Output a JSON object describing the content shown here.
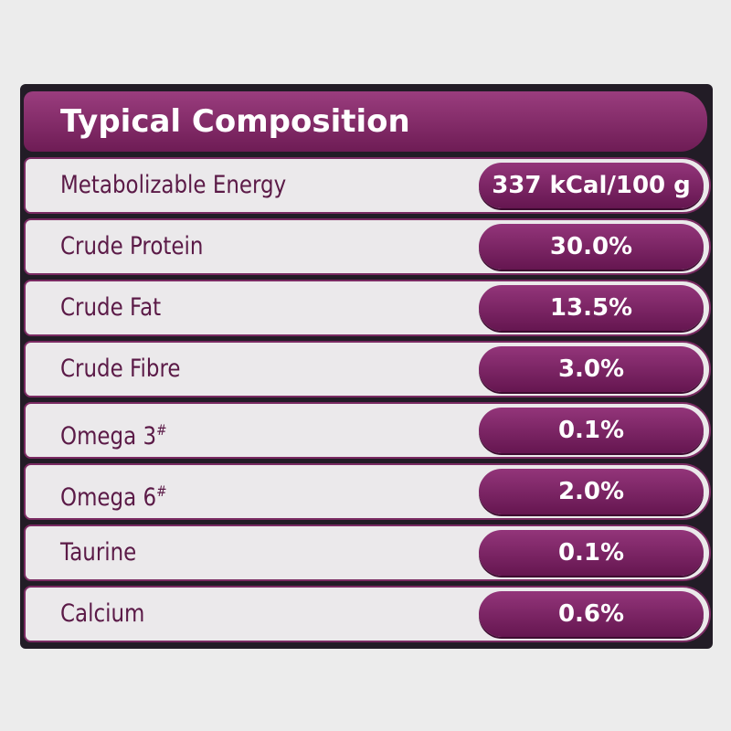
{
  "header": {
    "title": "Typical Composition"
  },
  "table": {
    "rows": [
      {
        "label": "Metabolizable Energy",
        "value": "337 kCal/100 g"
      },
      {
        "label": "Crude Protein",
        "value": "30.0%"
      },
      {
        "label": "Crude Fat",
        "value": "13.5%"
      },
      {
        "label": "Crude Fibre",
        "value": "3.0%"
      },
      {
        "label": "Omega 3",
        "mark": "#",
        "value": "0.1%"
      },
      {
        "label": "Omega 6",
        "mark": "#",
        "value": "2.0%"
      },
      {
        "label": "Taurine",
        "value": "0.1%"
      },
      {
        "label": "Calcium",
        "value": "0.6%"
      }
    ]
  }
}
